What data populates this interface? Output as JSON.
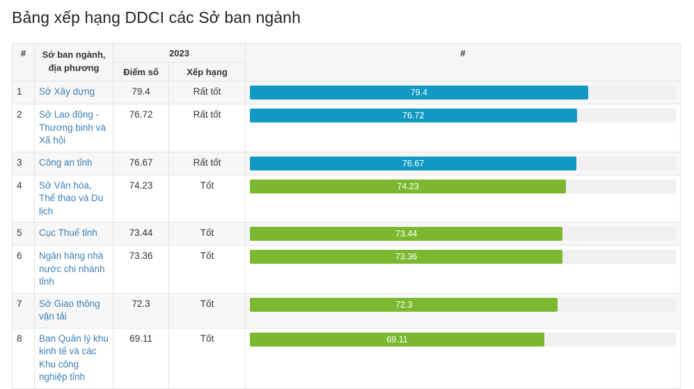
{
  "title": "Bảng xếp hạng DDCI các Sở ban ngành",
  "table": {
    "headers": {
      "rank": "#",
      "name": "Sở ban ngành, địa phương",
      "year": "2023",
      "score": "Điểm số",
      "level": "Xếp hạng",
      "bar": "#"
    },
    "rows": [
      {
        "rank": "1",
        "name": "Sở Xây dựng",
        "score": "79.4",
        "level": "Rất tốt",
        "value": 79.4,
        "color": "#1199c4"
      },
      {
        "rank": "2",
        "name": "Sở Lao động - Thương binh và Xã hội",
        "score": "76.72",
        "level": "Rất tốt",
        "value": 76.72,
        "color": "#1199c4"
      },
      {
        "rank": "3",
        "name": "Công an tỉnh",
        "score": "76.67",
        "level": "Rất tốt",
        "value": 76.67,
        "color": "#1199c4"
      },
      {
        "rank": "4",
        "name": "Sở Văn hóa, Thể thao và Du lịch",
        "score": "74.23",
        "level": "Tốt",
        "value": 74.23,
        "color": "#7cb82f"
      },
      {
        "rank": "5",
        "name": "Cục Thuế tỉnh",
        "score": "73.44",
        "level": "Tốt",
        "value": 73.44,
        "color": "#7cb82f"
      },
      {
        "rank": "6",
        "name": "Ngân hàng nhà nước chi nhánh tỉnh",
        "score": "73.36",
        "level": "Tốt",
        "value": 73.36,
        "color": "#7cb82f"
      },
      {
        "rank": "7",
        "name": "Sở Giao thông vận tải",
        "score": "72.3",
        "level": "Tốt",
        "value": 72.3,
        "color": "#7cb82f"
      },
      {
        "rank": "8",
        "name": "Ban Quản lý khu kinh tế và các Khu công nghiệp tỉnh",
        "score": "69.11",
        "level": "Tốt",
        "value": 69.11,
        "color": "#7cb82f"
      }
    ],
    "bar_max": 100
  }
}
